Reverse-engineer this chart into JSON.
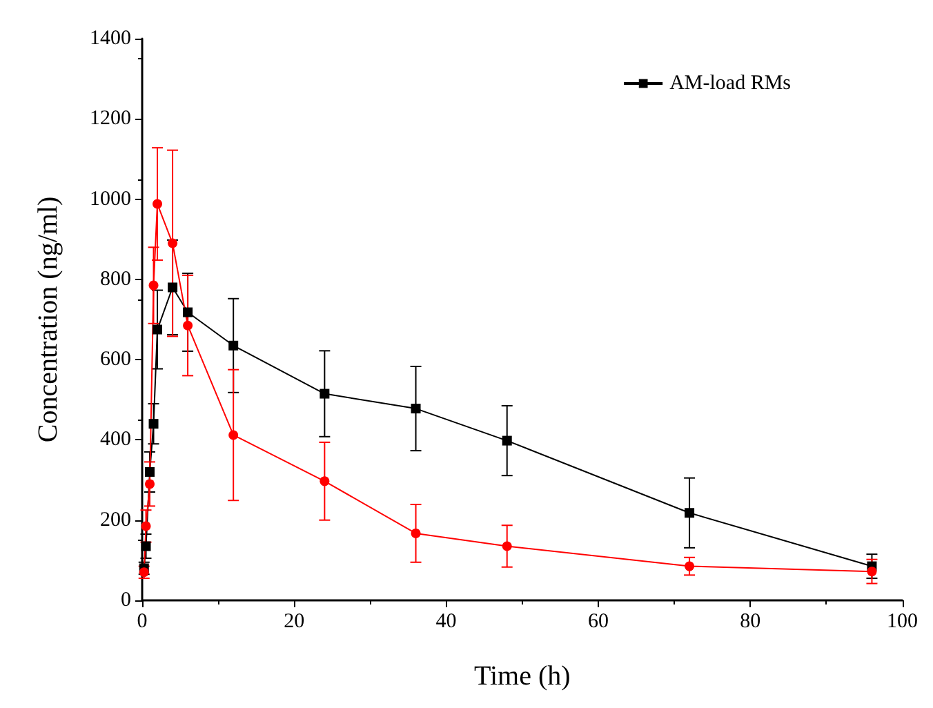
{
  "chart_data": {
    "type": "line",
    "xlabel": "Time (h)",
    "ylabel": "Concentration (ng/ml)",
    "xlim": [
      0,
      100
    ],
    "xticks": [
      0,
      20,
      40,
      60,
      80,
      100
    ],
    "ylim": [
      0,
      1400
    ],
    "yticks": [
      0,
      200,
      400,
      600,
      800,
      1000,
      1200,
      1400
    ],
    "grid": false,
    "legend": "top right",
    "x": [
      0.25,
      0.5,
      1,
      1.5,
      2,
      4,
      6,
      12,
      24,
      36,
      48,
      72,
      96
    ],
    "series": [
      {
        "name": "AM-load RMs",
        "color": "#000000",
        "marker": "square",
        "values": [
          80,
          135,
          320,
          440,
          675,
          780,
          718,
          635,
          515,
          478,
          398,
          218,
          85
        ],
        "errors": [
          15,
          30,
          50,
          50,
          98,
          118,
          97,
          117,
          107,
          105,
          87,
          87,
          30
        ]
      },
      {
        "color": "#ff0000",
        "marker": "circle",
        "values": [
          70,
          185,
          290,
          785,
          988,
          890,
          685,
          412,
          297,
          167,
          135,
          85,
          72
        ],
        "errors": [
          15,
          40,
          55,
          95,
          140,
          232,
          125,
          163,
          97,
          72,
          52,
          22,
          30
        ]
      }
    ]
  }
}
